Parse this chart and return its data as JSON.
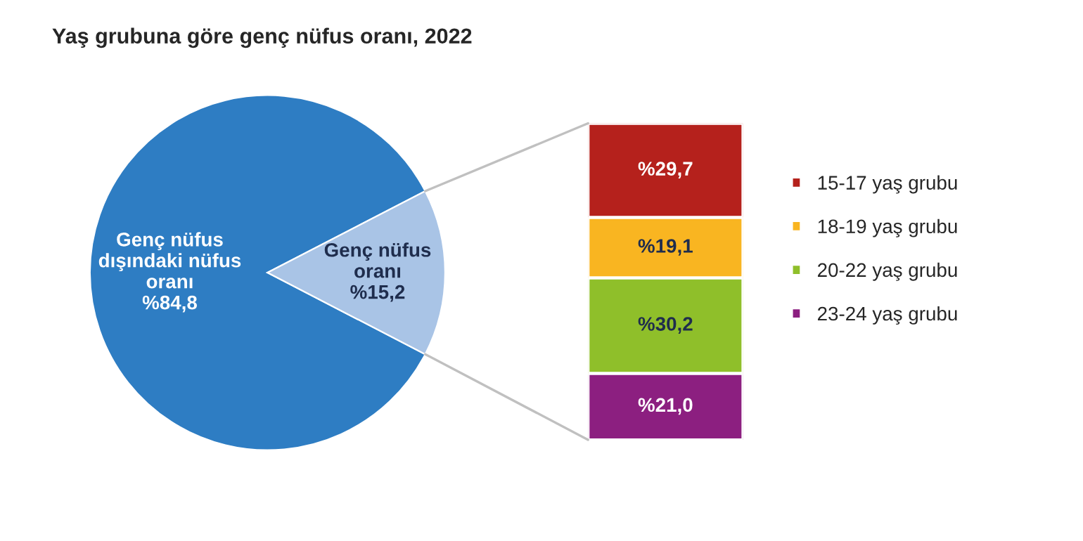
{
  "chart_data": [
    {
      "type": "pie",
      "title": "Yaş grubuna göre genç nüfus oranı, 2022",
      "categories": [
        "Genç nüfus dışındaki nüfus oranı",
        "Genç nüfus oranı"
      ],
      "values": [
        84.8,
        15.2
      ],
      "value_labels": [
        "%84,8",
        "%15,2"
      ],
      "colors": [
        "#2e7dc3",
        "#a9c4e6"
      ],
      "legend": false
    },
    {
      "type": "bar",
      "stacked": true,
      "categories": [
        null
      ],
      "series": [
        {
          "name": "23-24 yaş grubu",
          "color": "#8c1f80",
          "values": [
            21.0
          ],
          "value_labels": [
            "%21,0"
          ]
        },
        {
          "name": "20-22 yaş grubu",
          "color": "#8fbf2a",
          "values": [
            30.2
          ],
          "value_labels": [
            "%30,2"
          ]
        },
        {
          "name": "18-19 yaş grubu",
          "color": "#f9b521",
          "values": [
            19.1
          ],
          "value_labels": [
            "%19,1"
          ]
        },
        {
          "name": "15-17 yaş grubu",
          "color": "#b5211c",
          "values": [
            29.7
          ],
          "value_labels": [
            "%29,7"
          ]
        }
      ],
      "legend": "right"
    }
  ]
}
